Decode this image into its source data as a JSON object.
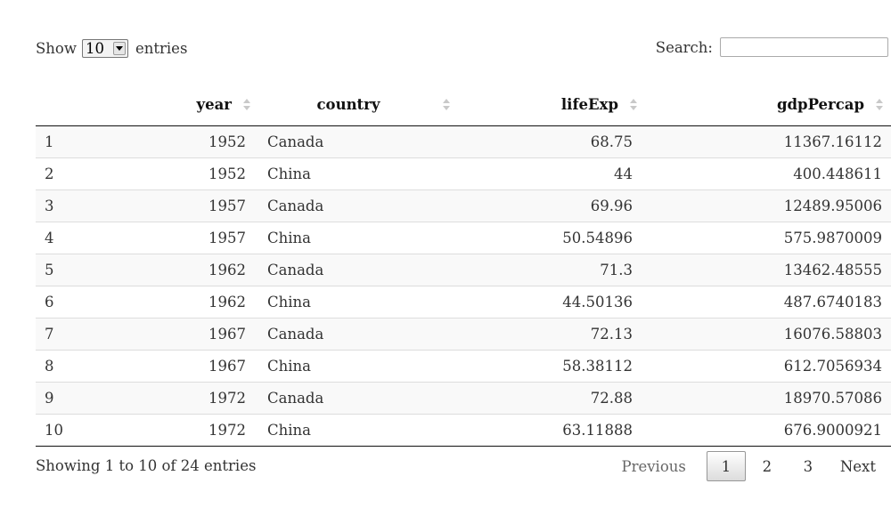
{
  "length_control": {
    "prefix": "Show",
    "selected": "10",
    "suffix": "entries"
  },
  "search": {
    "label": "Search:",
    "value": "",
    "placeholder": ""
  },
  "table": {
    "columns": [
      {
        "key": "index",
        "label": ""
      },
      {
        "key": "year",
        "label": "year"
      },
      {
        "key": "country",
        "label": "country"
      },
      {
        "key": "lifeExp",
        "label": "lifeExp"
      },
      {
        "key": "gdpPercap",
        "label": "gdpPercap"
      }
    ],
    "rows": [
      [
        "1",
        "1952",
        "Canada",
        "68.75",
        "11367.16112"
      ],
      [
        "2",
        "1952",
        "China",
        "44",
        "400.448611"
      ],
      [
        "3",
        "1957",
        "Canada",
        "69.96",
        "12489.95006"
      ],
      [
        "4",
        "1957",
        "China",
        "50.54896",
        "575.9870009"
      ],
      [
        "5",
        "1962",
        "Canada",
        "71.3",
        "13462.48555"
      ],
      [
        "6",
        "1962",
        "China",
        "44.50136",
        "487.6740183"
      ],
      [
        "7",
        "1967",
        "Canada",
        "72.13",
        "16076.58803"
      ],
      [
        "8",
        "1967",
        "China",
        "58.38112",
        "612.7056934"
      ],
      [
        "9",
        "1972",
        "Canada",
        "72.88",
        "18970.57086"
      ],
      [
        "10",
        "1972",
        "China",
        "63.11888",
        "676.9000921"
      ]
    ]
  },
  "info": "Showing 1 to 10 of 24 entries",
  "pagination": {
    "previous": "Previous",
    "pages": [
      "1",
      "2",
      "3"
    ],
    "current": "1",
    "next": "Next"
  }
}
